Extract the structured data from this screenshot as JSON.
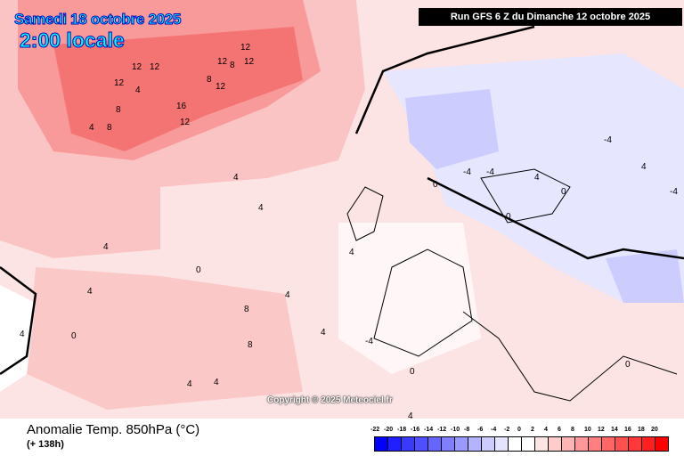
{
  "header": {
    "date": "Samedi 18 octobre 2025",
    "time": "2:00 locale",
    "run": "Run GFS 6 Z du Dimanche 12 octobre 2025"
  },
  "copyright": "Copyright © 2025 Meteociel.fr",
  "footer": {
    "title": "Anomalie Temp. 850hPa (°C)",
    "lead": "(+ 138h)"
  },
  "legend": {
    "labels": [
      "-22",
      "-20",
      "-18",
      "-16",
      "-14",
      "-12",
      "-10",
      "-8",
      "-6",
      "-4",
      "-2",
      "0",
      "2",
      "4",
      "6",
      "8",
      "10",
      "12",
      "14",
      "16",
      "18",
      "20"
    ],
    "colors": [
      "#0000ff",
      "#1f1fff",
      "#3939ff",
      "#4f4fff",
      "#6666ff",
      "#7f7fff",
      "#9999ff",
      "#b3b3ff",
      "#ccccff",
      "#e4e4ff",
      "#ffffff",
      "#ffffff",
      "#ffe4e4",
      "#ffcccc",
      "#ffb3b3",
      "#ff9999",
      "#ff7f7f",
      "#ff6666",
      "#ff4f4f",
      "#ff3939",
      "#ff1f1f",
      "#ff0000"
    ]
  },
  "contour_labels": [
    "12",
    "12",
    "12",
    "12",
    "12",
    "8",
    "12",
    "12",
    "8",
    "4",
    "8",
    "16",
    "12",
    "8",
    "4",
    "4",
    "4",
    "0",
    "4",
    "4",
    "4",
    "0",
    "-4",
    "-4",
    "-4",
    "-4",
    "0",
    "0",
    "4",
    "8",
    "4",
    "0",
    "8",
    "4",
    "4",
    "4",
    "0",
    "4",
    "-4",
    "4",
    "0",
    "4"
  ]
}
